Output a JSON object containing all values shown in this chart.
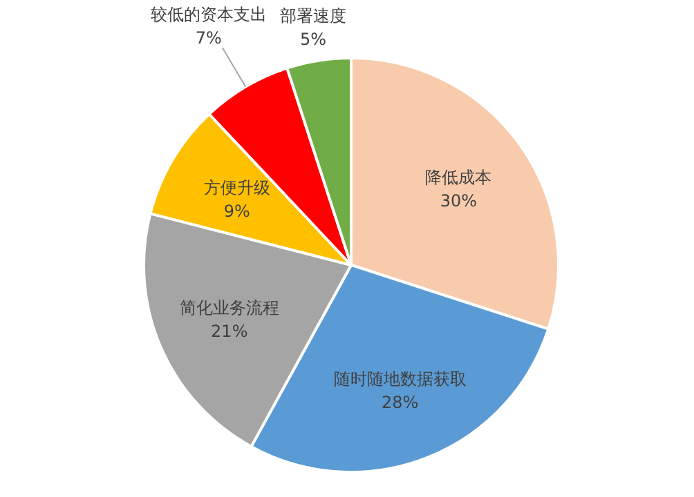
{
  "chart_data": {
    "type": "pie",
    "categories": [
      "降低成本",
      "随时随地数据获取",
      "简化业务流程",
      "方便升级",
      "较低的资本支出",
      "部署速度"
    ],
    "values": [
      30,
      28,
      21,
      9,
      7,
      5
    ],
    "value_labels": [
      "30%",
      "28%",
      "21%",
      "9%",
      "7%",
      "5%"
    ],
    "colors": [
      "#f8cbad",
      "#5b9bd5",
      "#a5a5a5",
      "#ffc000",
      "#ff0000",
      "#70ad47"
    ]
  }
}
